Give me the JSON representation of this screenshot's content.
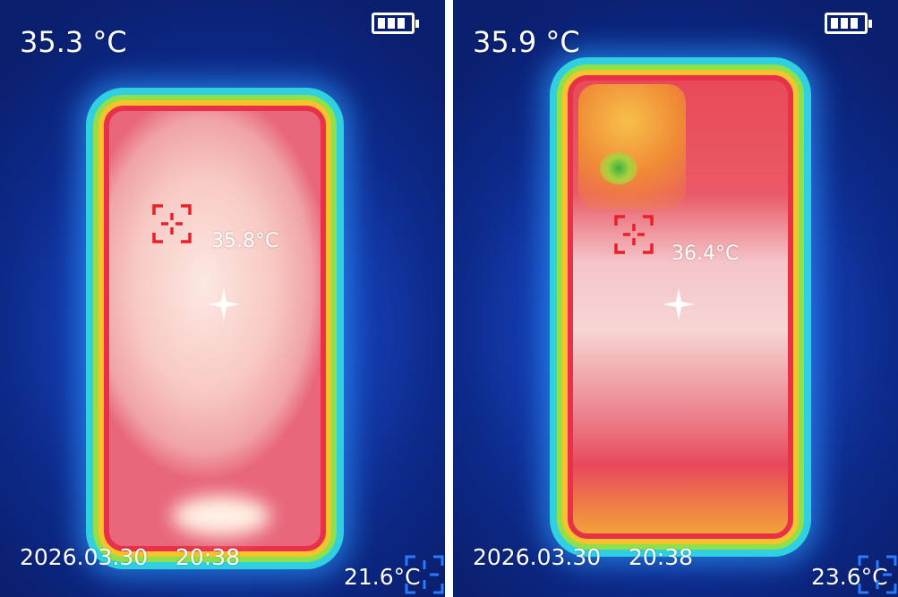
{
  "panels": [
    {
      "max_temp": "35.3 °C",
      "spot_temp": "35.8°C",
      "date": "2026.03.30",
      "time": "20:38",
      "min_temp": "21.6°C",
      "battery_icon": "battery-full-icon"
    },
    {
      "max_temp": "35.9 °C",
      "spot_temp": "36.4°C",
      "date": "2026.03.30",
      "time": "20:38",
      "min_temp": "23.6°C",
      "battery_icon": "battery-full-icon"
    }
  ],
  "colors": {
    "target_reticle": "#e8202a",
    "min_reticle": "#2a7aff",
    "text": "#ffffff"
  }
}
